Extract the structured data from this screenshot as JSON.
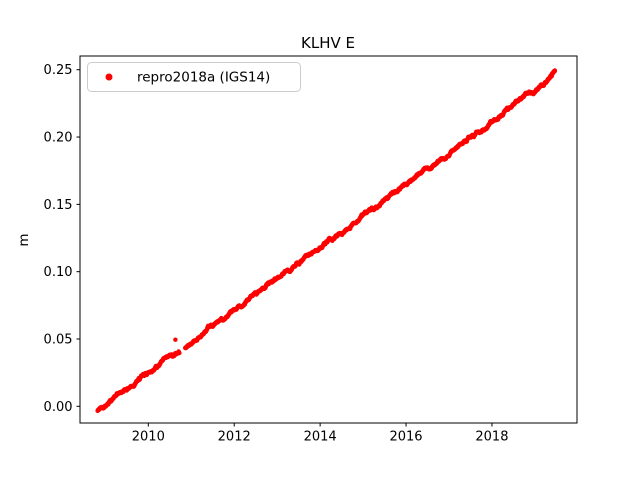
{
  "figure": {
    "title": "KLHV E"
  },
  "chart_data": {
    "type": "scatter",
    "title": "KLHV E",
    "xlabel": "",
    "ylabel": "m",
    "grid": false,
    "legend": {
      "position": "upper left",
      "entries": [
        {
          "label": "repro2018a (IGS14)",
          "marker": "dot",
          "color": "#ff0000"
        }
      ]
    },
    "xlim": [
      2008.41,
      2019.98
    ],
    "ylim": [
      -0.0124,
      0.2602
    ],
    "xticks": [
      2010,
      2012,
      2014,
      2016,
      2018
    ],
    "xtick_labels": [
      "2010",
      "2012",
      "2014",
      "2016",
      "2018"
    ],
    "yticks": [
      0.0,
      0.05,
      0.1,
      0.15,
      0.2,
      0.25
    ],
    "ytick_labels": [
      "0.00",
      "0.05",
      "0.10",
      "0.15",
      "0.20",
      "0.25"
    ],
    "series": [
      {
        "name": "repro2018a (IGS14)",
        "color": "#ff0000",
        "marker": "point",
        "marker_radius_px": 2.2,
        "trend": {
          "start_year": 2008.82,
          "end_year": 2019.47,
          "slope_m_per_year": 0.0234,
          "value_at_2009": 0.001,
          "description": "near-linear east displacement ~2.34 cm/yr"
        },
        "noise_std_m": 0.0009,
        "gaps": [
          [
            2010.73,
            2010.86
          ]
        ],
        "outliers": [
          [
            2010.63,
            0.0495
          ]
        ],
        "approx_trend_points": [
          [
            2009.0,
            0.001
          ],
          [
            2010.0,
            0.024
          ],
          [
            2011.0,
            0.048
          ],
          [
            2012.0,
            0.071
          ],
          [
            2013.0,
            0.095
          ],
          [
            2014.0,
            0.118
          ],
          [
            2015.0,
            0.141
          ],
          [
            2016.0,
            0.165
          ],
          [
            2017.0,
            0.188
          ],
          [
            2018.0,
            0.212
          ],
          [
            2019.0,
            0.235
          ],
          [
            2019.45,
            0.246
          ]
        ]
      }
    ]
  }
}
